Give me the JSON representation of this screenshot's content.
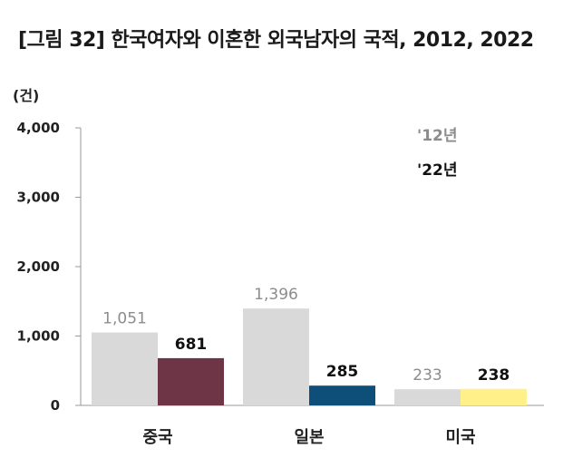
{
  "title": "[그림 32] 한국여자와 이혼한 외국남자의 국적, 2012, 2022",
  "chart_data": {
    "type": "bar",
    "title": "[그림 32] 한국여자와 이혼한 외국남자의 국적, 2012, 2022",
    "unit_label": "(건)",
    "categories": [
      "중국",
      "일본",
      "미국"
    ],
    "series": [
      {
        "name": "'12년",
        "values": [
          1051,
          1396,
          233
        ],
        "labels": [
          "1,051",
          "1,396",
          "233"
        ],
        "color": "#d9d9d9"
      },
      {
        "name": "'22년",
        "values": [
          681,
          285,
          238
        ],
        "labels": [
          "681",
          "285",
          "238"
        ],
        "colors": [
          "#6e3546",
          "#0e4f7a",
          "#fff08a"
        ]
      }
    ],
    "ylim": [
      0,
      4000
    ],
    "yticks": [
      0,
      1000,
      2000,
      3000,
      4000
    ],
    "ytick_labels": [
      "0",
      "1,000",
      "2,000",
      "3,000",
      "4,000"
    ],
    "grid": false,
    "legend_position": "top-right"
  }
}
